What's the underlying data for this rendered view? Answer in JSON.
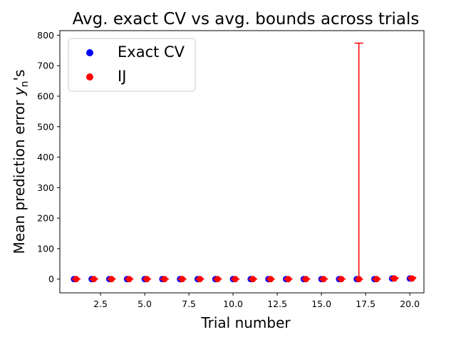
{
  "chart_data": {
    "type": "scatter",
    "title": "Avg. exact CV vs avg. bounds across trials",
    "xlabel": "Trial number",
    "ylabel_main": "Mean prediction error ",
    "ylabel_var": "y",
    "ylabel_sub": "n",
    "ylabel_suffix": "'s",
    "xlim": [
      0.2,
      20.8
    ],
    "ylim": [
      -45,
      815
    ],
    "xticks": [
      2.5,
      5.0,
      7.5,
      10.0,
      12.5,
      15.0,
      17.5,
      20.0
    ],
    "xtick_labels": [
      "2.5",
      "5.0",
      "7.5",
      "10.0",
      "12.5",
      "15.0",
      "17.5",
      "20.0"
    ],
    "yticks": [
      0,
      100,
      200,
      300,
      400,
      500,
      600,
      700,
      800
    ],
    "ytick_labels": [
      "0",
      "100",
      "200",
      "300",
      "400",
      "500",
      "600",
      "700",
      "800"
    ],
    "ij_offset": 0.12,
    "grid": false,
    "legend_position": "top-left",
    "series": [
      {
        "name": "Exact CV",
        "color": "#0000ff",
        "x": [
          1,
          2,
          3,
          4,
          5,
          6,
          7,
          8,
          9,
          10,
          11,
          12,
          13,
          14,
          15,
          16,
          17,
          18,
          19,
          20
        ],
        "y": [
          0,
          0,
          0,
          0,
          0,
          0,
          0,
          0,
          0,
          0,
          0,
          0,
          0,
          0,
          0,
          0,
          0,
          0,
          2,
          2
        ]
      },
      {
        "name": "IJ",
        "color": "#ff0000",
        "x": [
          1,
          2,
          3,
          4,
          5,
          6,
          7,
          8,
          9,
          10,
          11,
          12,
          13,
          14,
          15,
          16,
          17,
          18,
          19,
          20
        ],
        "y": [
          0,
          0,
          0,
          0,
          0,
          0,
          0,
          0,
          0,
          0,
          0,
          0,
          0,
          0,
          0,
          0,
          0,
          0,
          2,
          2
        ],
        "error_upper": [
          1,
          1,
          1,
          1,
          1,
          1,
          1,
          1,
          1,
          1,
          1,
          1,
          1,
          1,
          1,
          1,
          774,
          1,
          3,
          4
        ],
        "error_lower": [
          0,
          0,
          0,
          0,
          0,
          0,
          0,
          0,
          0,
          0,
          0,
          0,
          0,
          0,
          0,
          0,
          0,
          0,
          0,
          0
        ]
      }
    ]
  }
}
